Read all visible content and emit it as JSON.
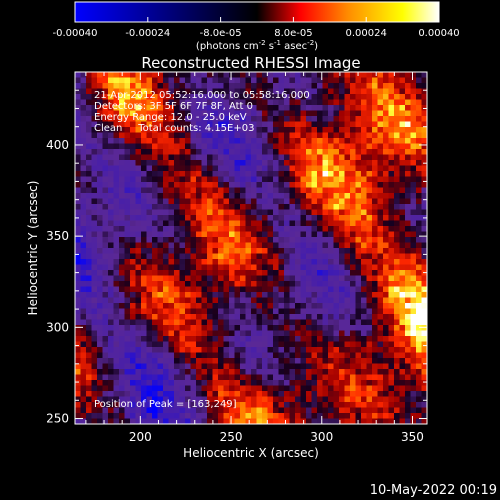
{
  "chart_data": {
    "type": "heatmap",
    "title": "Reconstructed RHESSI Image",
    "xlabel": "Heliocentric X (arcsec)",
    "ylabel": "Heliocentric Y (arcsec)",
    "xlim": [
      164,
      358
    ],
    "ylim": [
      247,
      440
    ],
    "x_ticks": [
      200,
      250,
      300,
      350
    ],
    "y_ticks": [
      250,
      300,
      350,
      400
    ],
    "annotations": [
      "21-Apr-2012 05:52:16.000 to 05:58:16.000",
      "Detectors: 3F 5F 6F 7F 8F, Att 0",
      "Energy Range: 12.0 - 25.0 keV",
      "Clean     Total counts: 4.15E+03",
      "Position of Peak = [163,249]"
    ],
    "colorbar": {
      "range": [
        -0.0004,
        0.0004
      ],
      "tick_labels": [
        "-0.00040",
        "-0.00024",
        "-8.0e-05",
        "8.0e-05",
        "0.00024",
        "0.00040"
      ],
      "tick_values": [
        -0.0004,
        -0.00024,
        -8e-05,
        8e-05,
        0.00024,
        0.0004
      ],
      "unit_label_prefix": "(photons cm",
      "unit_label_exp1": "-2",
      "unit_label_mid": " s",
      "unit_label_exp2": "-1",
      "unit_label_mid2": " asec",
      "unit_label_exp3": "-2",
      "unit_label_suffix": ")",
      "colors": [
        "#0000ff",
        "#000000",
        "#ff0000",
        "#ff8c00",
        "#ffff00",
        "#ffffff"
      ]
    },
    "peak_position": [
      163,
      249
    ]
  },
  "footer_date": "10-May-2022 00:19"
}
